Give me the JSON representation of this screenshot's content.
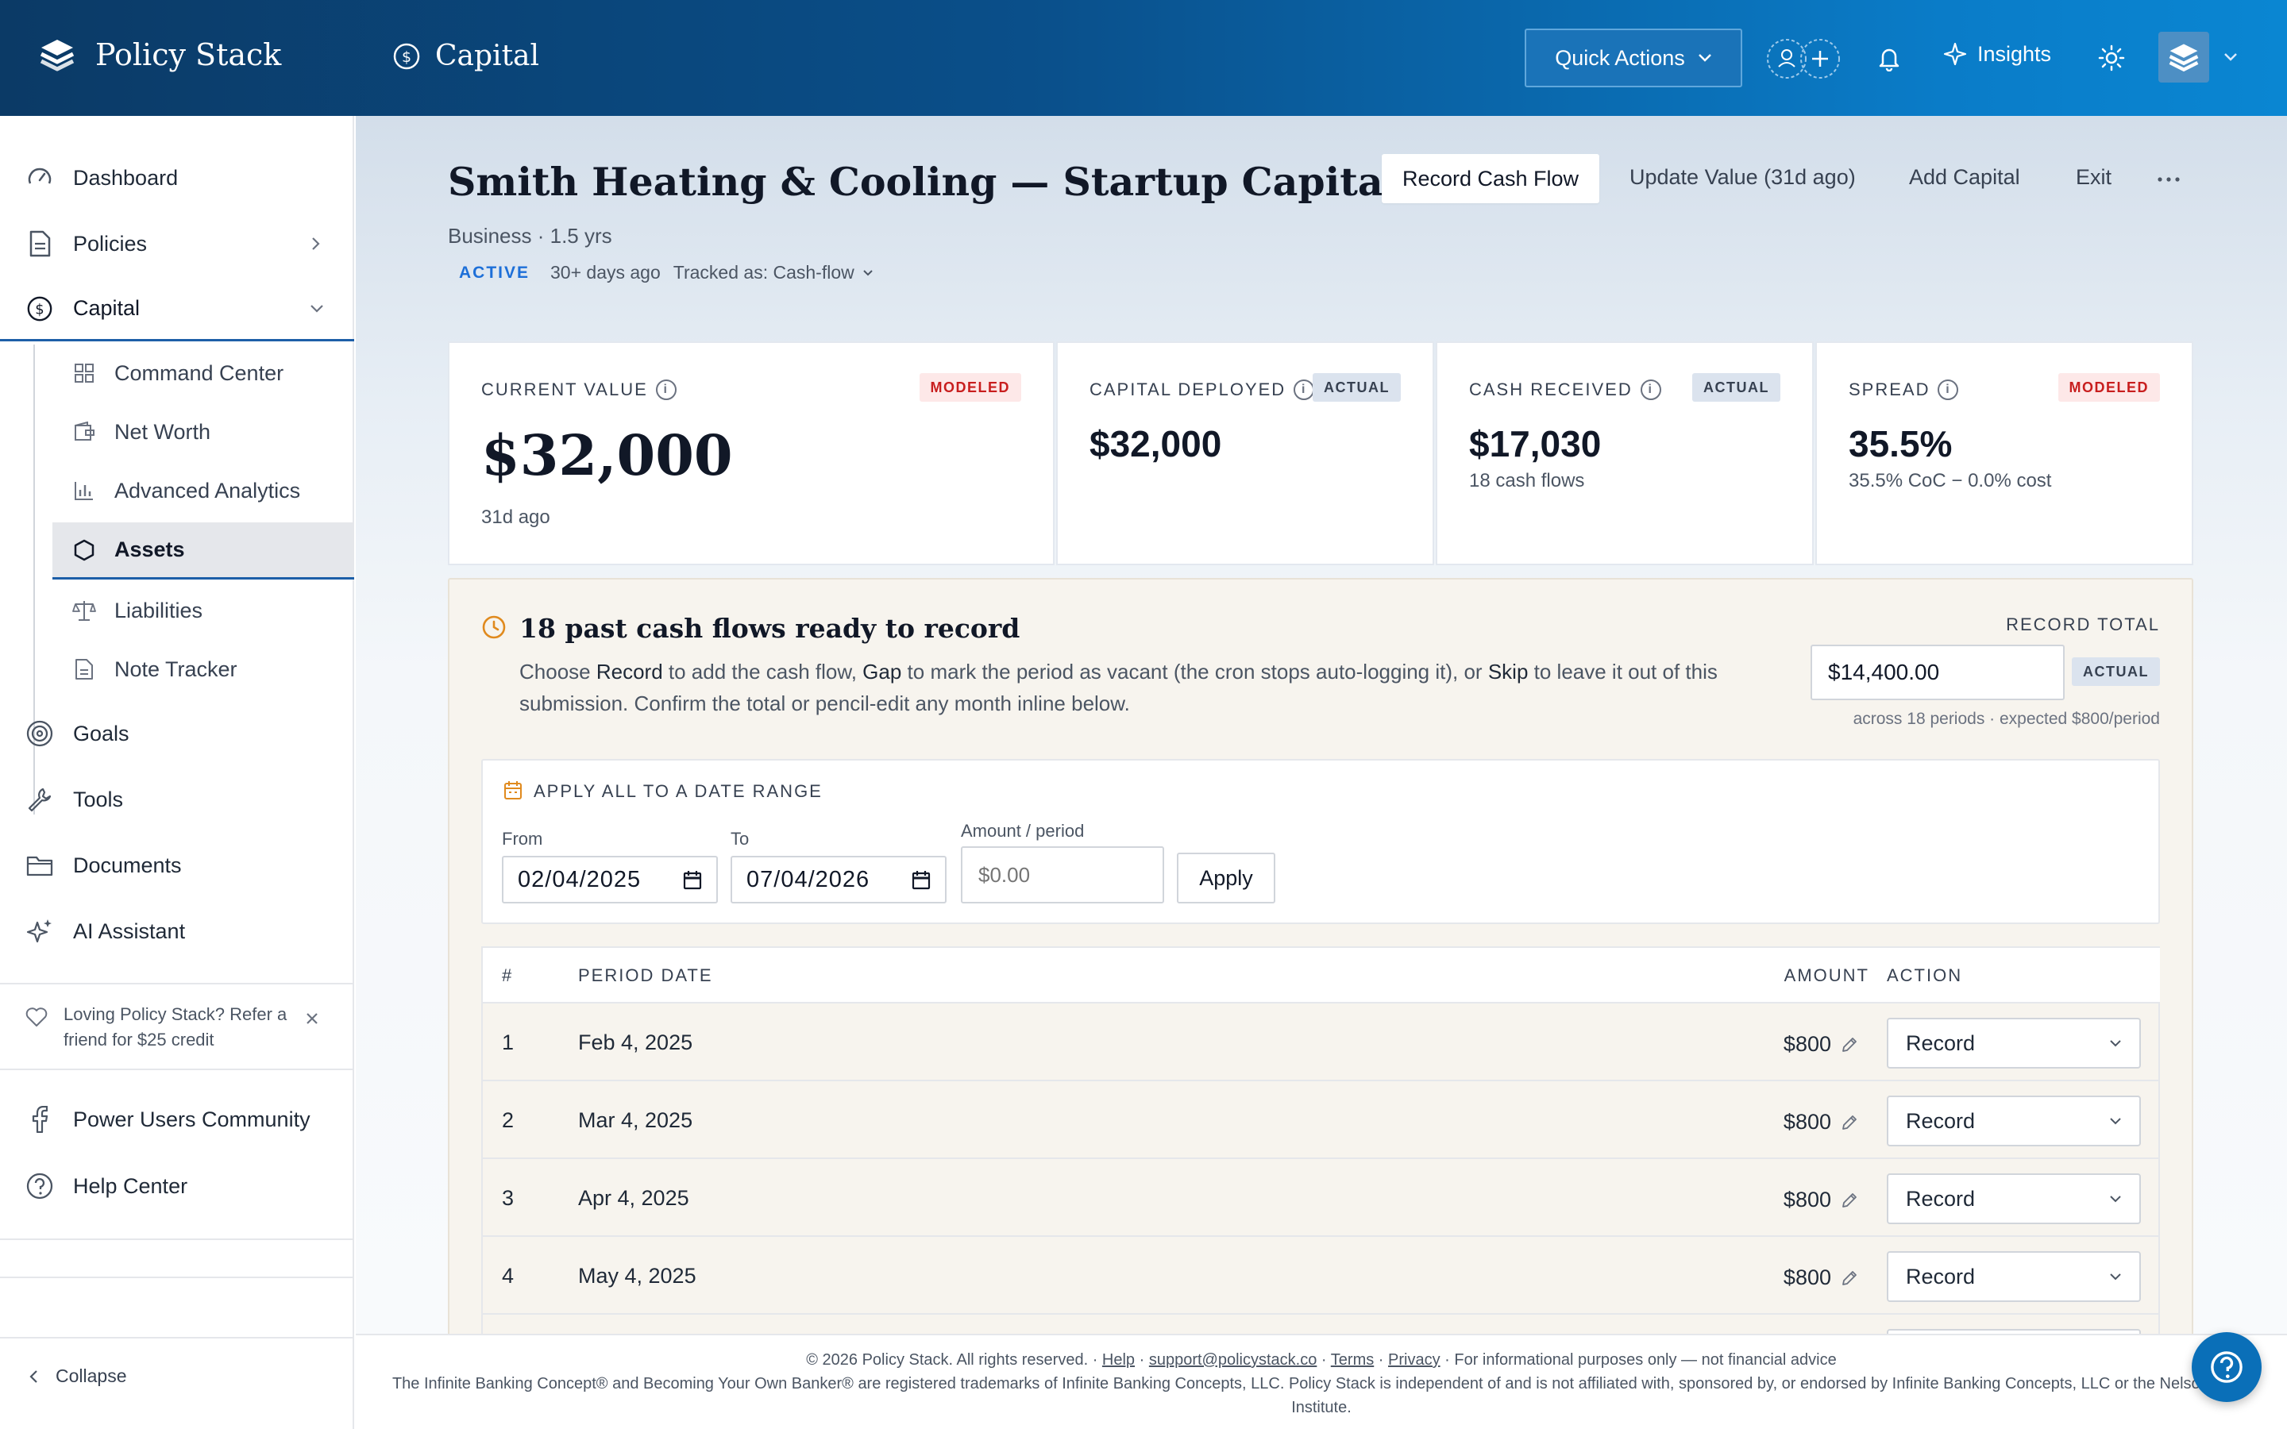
{
  "app": {
    "name": "Policy Stack",
    "section": "Capital"
  },
  "topbar": {
    "quick_actions": "Quick Actions",
    "insights": "Insights"
  },
  "sidebar": {
    "items": [
      {
        "label": "Dashboard",
        "icon": "gauge-icon"
      },
      {
        "label": "Policies",
        "icon": "document-icon"
      },
      {
        "label": "Capital",
        "icon": "dollar-circle-icon"
      }
    ],
    "capital_sub": [
      {
        "label": "Command Center",
        "icon": "grid-icon"
      },
      {
        "label": "Net Worth",
        "icon": "wallet-icon"
      },
      {
        "label": "Advanced Analytics",
        "icon": "bar-chart-icon"
      },
      {
        "label": "Assets",
        "icon": "hexagon-icon",
        "active": true
      },
      {
        "label": "Liabilities",
        "icon": "scale-icon"
      },
      {
        "label": "Note Tracker",
        "icon": "note-icon"
      }
    ],
    "lower_items": [
      {
        "label": "Goals",
        "icon": "target-icon"
      },
      {
        "label": "Tools",
        "icon": "wrench-icon"
      },
      {
        "label": "Documents",
        "icon": "folder-icon"
      },
      {
        "label": "AI Assistant",
        "icon": "sparkle-icon"
      }
    ],
    "referral": "Loving Policy Stack? Refer a friend for $25 credit",
    "community": "Power Users Community",
    "help": "Help Center",
    "collapse": "Collapse"
  },
  "page": {
    "title": "Smith Heating & Cooling — Startup Capital",
    "meta": "Business · 1.5 yrs",
    "status": "ACTIVE",
    "age": "30+ days ago",
    "tracked": "Tracked as: Cash-flow",
    "actions": {
      "record_cash_flow": "Record Cash Flow",
      "update_value": "Update Value (31d ago)",
      "add_capital": "Add Capital",
      "exit": "Exit"
    }
  },
  "cards": [
    {
      "label": "CURRENT VALUE",
      "badge": "MODELED",
      "value": "$32,000",
      "sub": "31d ago"
    },
    {
      "label": "CAPITAL DEPLOYED",
      "badge": "ACTUAL",
      "value": "$32,000",
      "sub": ""
    },
    {
      "label": "CASH RECEIVED",
      "badge": "ACTUAL",
      "value": "$17,030",
      "sub": "18 cash flows"
    },
    {
      "label": "SPREAD",
      "badge": "MODELED",
      "value": "35.5%",
      "sub": "35.5% CoC − 0.0% cost"
    }
  ],
  "panel": {
    "title": "18 past cash flows ready to record",
    "desc_1": "Choose ",
    "record_word": "Record",
    "desc_2": " to add the cash flow, ",
    "gap_word": "Gap",
    "desc_3": " to mark the period as vacant (the cron stops auto-logging it), or ",
    "skip_word": "Skip",
    "desc_4": " to leave it out of this submission. Confirm the total or pencil-edit any month inline below.",
    "record_total_label": "RECORD TOTAL",
    "record_total_value": "$14,400.00",
    "record_total_badge": "ACTUAL",
    "record_total_note": "across 18 periods · expected $800/period",
    "range": {
      "title": "APPLY ALL TO A DATE RANGE",
      "from_label": "From",
      "from_value": "02/04/2025",
      "to_label": "To",
      "to_value": "07/04/2026",
      "amount_label": "Amount / period",
      "amount_placeholder": "$0.00",
      "apply": "Apply"
    },
    "table": {
      "headers": {
        "num": "#",
        "date": "PERIOD DATE",
        "amount": "AMOUNT",
        "action": "ACTION"
      },
      "rows": [
        {
          "num": "1",
          "date": "Feb 4, 2025",
          "amount": "$800",
          "action": "Record"
        },
        {
          "num": "2",
          "date": "Mar 4, 2025",
          "amount": "$800",
          "action": "Record"
        },
        {
          "num": "3",
          "date": "Apr 4, 2025",
          "amount": "$800",
          "action": "Record"
        },
        {
          "num": "4",
          "date": "May 4, 2025",
          "amount": "$800",
          "action": "Record"
        }
      ]
    }
  },
  "footer": {
    "copyright": "© 2026 Policy Stack. All rights reserved. · ",
    "help": "Help",
    "sep1": " · ",
    "email": "support@policystack.co",
    "sep2": " · ",
    "terms": "Terms",
    "sep3": " · ",
    "privacy": "Privacy",
    "disclaimer": " · For informational purposes only — not financial advice",
    "trademark": "The Infinite Banking Concept® and Becoming Your Own Banker® are registered trademarks of Infinite Banking Concepts, LLC. Policy Stack is independent of and is not affiliated with, sponsored by, or endorsed by Infinite Banking Concepts, LLC or the Nelson Nash Institute."
  },
  "colors": {
    "accent": "#0a6fb8",
    "topbar_dark": "#0b3a66",
    "badge_red": "#c81e1e",
    "active_blue": "#1d4ed8",
    "warning": "#e08a1e"
  }
}
